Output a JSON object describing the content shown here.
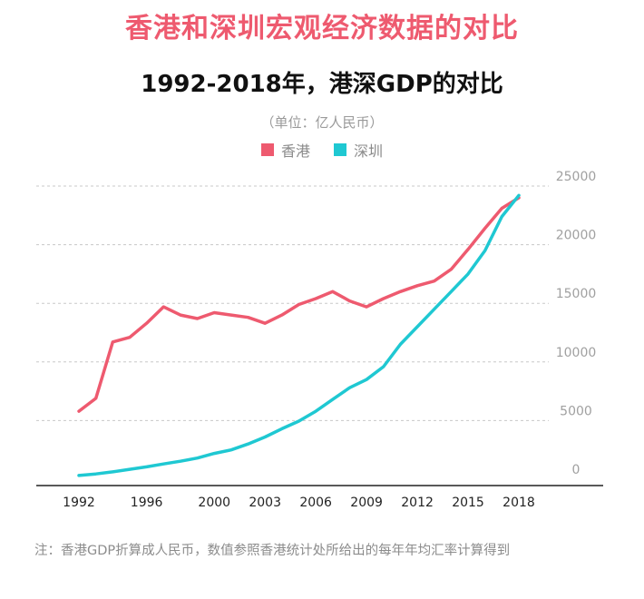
{
  "headline": "香港和深圳宏观经济数据的对比",
  "chart_data": {
    "type": "line",
    "title": "1992-2018年，港深GDP的对比",
    "unit_label": "（单位：亿人民币）",
    "x": [
      1992,
      1993,
      1994,
      1995,
      1996,
      1997,
      1998,
      1999,
      2000,
      2001,
      2002,
      2003,
      2004,
      2005,
      2006,
      2007,
      2008,
      2009,
      2010,
      2011,
      2012,
      2013,
      2014,
      2015,
      2016,
      2017,
      2018
    ],
    "x_tick_labels": [
      "1992",
      "1996",
      "2000",
      "2003",
      "2006",
      "2009",
      "2012",
      "2015",
      "2018"
    ],
    "x_tick_values": [
      1992,
      1996,
      2000,
      2003,
      2006,
      2009,
      2012,
      2015,
      2018
    ],
    "y_ticks": [
      0,
      5000,
      10000,
      15000,
      20000,
      25000
    ],
    "y_tick_labels": [
      "0",
      "5000",
      "10000",
      "15000",
      "20000",
      "25000"
    ],
    "ylim": [
      0,
      25000
    ],
    "grid": true,
    "legend_position": "top-center",
    "series": [
      {
        "name": "香港",
        "color": "#ee5a6f",
        "values": [
          5800,
          6900,
          11700,
          12100,
          13300,
          14700,
          14000,
          13700,
          14200,
          14000,
          13800,
          13300,
          14000,
          14900,
          15400,
          16000,
          15200,
          14700,
          15400,
          16000,
          16500,
          16900,
          17900,
          19600,
          21400,
          23100,
          24000
        ]
      },
      {
        "name": "深圳",
        "color": "#1fc8d2",
        "values": [
          320,
          450,
          630,
          840,
          1050,
          1300,
          1530,
          1800,
          2200,
          2500,
          3000,
          3600,
          4300,
          4950,
          5800,
          6800,
          7800,
          8500,
          9600,
          11500,
          13000,
          14500,
          16000,
          17500,
          19500,
          22400,
          24200
        ]
      }
    ]
  },
  "note": "注：香港GDP折算成人民币，数值参照香港统计处所给出的每年年均汇率计算得到"
}
